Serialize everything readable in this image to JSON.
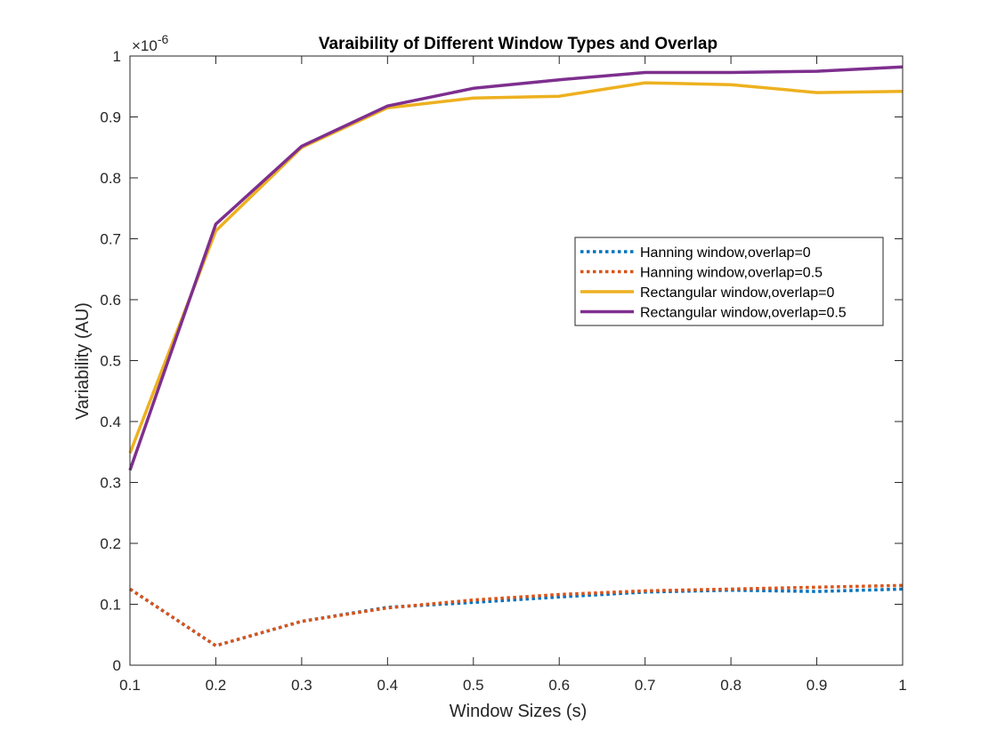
{
  "chart_data": {
    "type": "line",
    "title": "Varaibility of Different Window Types and Overlap",
    "xlabel": "Window Sizes (s)",
    "ylabel": "Variability (AU)",
    "y_exponent_label": "×10",
    "y_exponent_power": "-6",
    "xlim": [
      0.1,
      1
    ],
    "ylim": [
      0,
      1
    ],
    "xticks": [
      "0.1",
      "0.2",
      "0.3",
      "0.4",
      "0.5",
      "0.6",
      "0.7",
      "0.8",
      "0.9",
      "1"
    ],
    "yticks": [
      "0",
      "0.1",
      "0.2",
      "0.3",
      "0.4",
      "0.5",
      "0.6",
      "0.7",
      "0.8",
      "0.9",
      "1"
    ],
    "grid": false,
    "legend_position": "right",
    "x": [
      0.1,
      0.2,
      0.3,
      0.4,
      0.5,
      0.6,
      0.7,
      0.8,
      0.9,
      1.0
    ],
    "series": [
      {
        "name": "Hanning window,overlap=0",
        "color": "#0072BD",
        "style": "dotted",
        "values": [
          0.125,
          0.032,
          0.072,
          0.095,
          0.103,
          0.112,
          0.12,
          0.123,
          0.121,
          0.125
        ]
      },
      {
        "name": "Hanning window,overlap=0.5",
        "color": "#D95319",
        "style": "dotted",
        "values": [
          0.125,
          0.032,
          0.072,
          0.094,
          0.107,
          0.116,
          0.122,
          0.125,
          0.128,
          0.131
        ]
      },
      {
        "name": "Rectangular window,overlap=0",
        "color": "#EDB120",
        "style": "solid",
        "values": [
          0.348,
          0.713,
          0.85,
          0.915,
          0.931,
          0.934,
          0.956,
          0.953,
          0.94,
          0.942
        ]
      },
      {
        "name": "Rectangular window,overlap=0.5",
        "color": "#7E2F8E",
        "style": "solid",
        "values": [
          0.32,
          0.724,
          0.852,
          0.918,
          0.947,
          0.961,
          0.973,
          0.973,
          0.975,
          0.982
        ]
      }
    ]
  }
}
